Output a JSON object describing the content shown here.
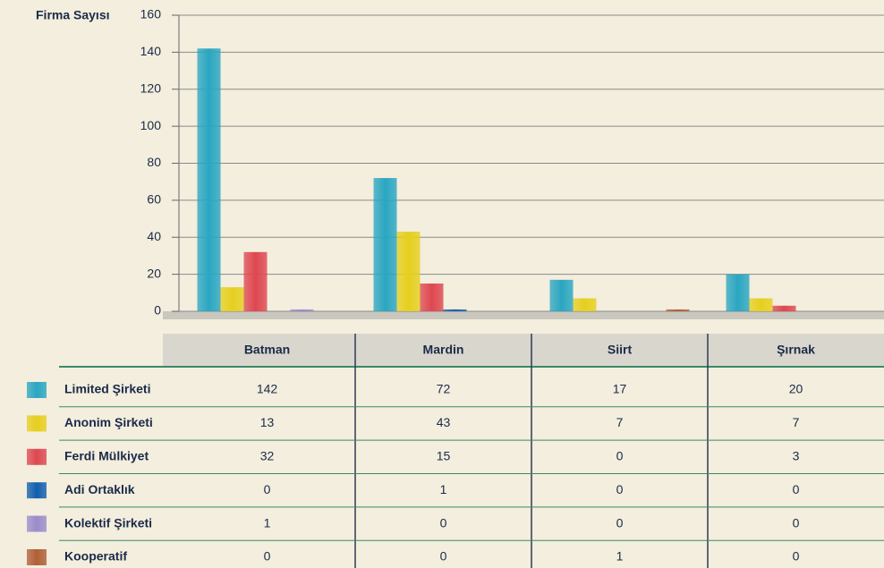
{
  "chart_data": {
    "type": "bar",
    "y_label": "Firma Sayısı",
    "categories": [
      "Batman",
      "Mardin",
      "Siirt",
      "Şırnak"
    ],
    "series": [
      {
        "name": "Limited Şirketi",
        "color": "#2aa6c2",
        "values": [
          142,
          72,
          17,
          20
        ]
      },
      {
        "name": "Anonim Şirketi",
        "color": "#e6cf1e",
        "values": [
          13,
          43,
          7,
          7
        ]
      },
      {
        "name": "Ferdi Mülkiyet",
        "color": "#de4750",
        "values": [
          32,
          15,
          0,
          3
        ]
      },
      {
        "name": "Adi Ortaklık",
        "color": "#105fae",
        "values": [
          0,
          1,
          0,
          0
        ]
      },
      {
        "name": "Kolektif Şirketi",
        "color": "#9a8ccb",
        "values": [
          1,
          0,
          0,
          0
        ]
      },
      {
        "name": "Kooperatif",
        "color": "#b05f38",
        "values": [
          0,
          0,
          1,
          0
        ]
      }
    ],
    "ylim": [
      0,
      160
    ],
    "yticks": [
      0,
      20,
      40,
      60,
      80,
      100,
      120,
      140,
      160
    ],
    "grid": true
  }
}
